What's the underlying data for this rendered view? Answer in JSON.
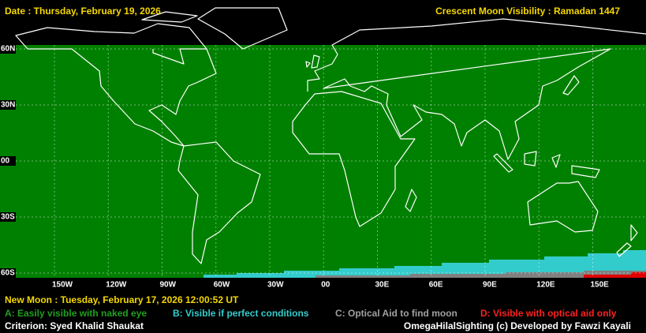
{
  "header": {
    "date": "Date : Thursday, February 19, 2026",
    "title": "Crescent Moon Visibility : Ramadan  1447"
  },
  "map": {
    "lat_labels": [
      "60N",
      "30N",
      "00",
      "30S",
      "60S"
    ],
    "lon_labels": [
      "150W",
      "120W",
      "90W",
      "60W",
      "30W",
      "00",
      "30E",
      "60E",
      "90E",
      "120E",
      "150E"
    ]
  },
  "footer": {
    "new_moon": "New Moon : Tuesday, February 17, 2026  12:00:52  UT",
    "legend": [
      "A: Easily visible with naked eye",
      "B: Visible if perfect conditions",
      "C: Optical Aid to find moon",
      "D: Visible with optical aid only"
    ],
    "criterion": "Criterion: Syed Khalid Shaukat",
    "credit": "OmegaHilalSighting  (c)  Developed by Fawzi Kayali"
  }
}
